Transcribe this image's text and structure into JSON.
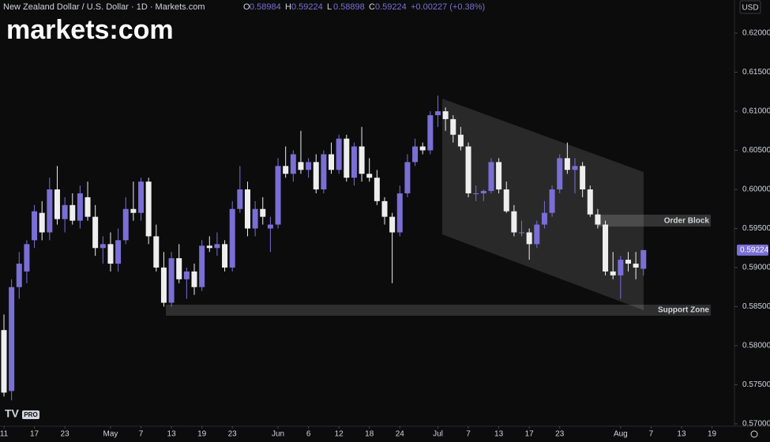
{
  "header": {
    "title": "New Zealand Dollar / U.S. Dollar · 1D · Markets.com",
    "change": "+0.00227 (+0.38%)",
    "currency": "USD",
    "logo": "markets:com",
    "badge": "PRO"
  },
  "chart_data": {
    "type": "candlestick",
    "open": [
      0.582,
      0.5742,
      0.5875,
      0.5895,
      0.5935,
      0.597,
      0.5945,
      0.6,
      0.5962,
      0.598,
      0.596,
      0.599,
      0.5965,
      0.5925,
      0.593,
      0.5905,
      0.5935,
      0.5975,
      0.597,
      0.601,
      0.594,
      0.59,
      0.5855,
      0.5912,
      0.5885,
      0.5895,
      0.5875,
      0.5928,
      0.5925,
      0.593,
      0.59,
      0.5975,
      0.6,
      0.595,
      0.5975,
      0.595,
      0.5955,
      0.603,
      0.602,
      0.6035,
      0.6025,
      0.6035,
      0.6,
      0.6045,
      0.6025,
      0.6065,
      0.6015,
      0.6055,
      0.602,
      0.6015,
      0.5985,
      0.5965,
      0.5945,
      0.5995,
      0.6035,
      0.6055,
      0.605,
      0.6095,
      0.61,
      0.609,
      0.607,
      0.6055,
      0.5995,
      0.5995,
      0.5998,
      0.6035,
      0.6,
      0.5972,
      0.5945,
      0.5945,
      0.593,
      0.5955,
      0.597,
      0.6,
      0.604,
      0.6025,
      0.603,
      0.6,
      0.5968,
      0.5955,
      0.5895,
      0.589,
      0.591,
      0.5905,
      0.58984
    ],
    "high": [
      0.584,
      0.5885,
      0.592,
      0.5935,
      0.598,
      0.5985,
      0.6015,
      0.603,
      0.599,
      0.5995,
      0.6005,
      0.601,
      0.598,
      0.594,
      0.5945,
      0.595,
      0.599,
      0.601,
      0.6015,
      0.6015,
      0.5955,
      0.592,
      0.592,
      0.593,
      0.59,
      0.5905,
      0.5935,
      0.594,
      0.5945,
      0.5935,
      0.5985,
      0.603,
      0.601,
      0.5985,
      0.599,
      0.5965,
      0.604,
      0.6055,
      0.605,
      0.6075,
      0.604,
      0.6045,
      0.605,
      0.606,
      0.607,
      0.607,
      0.606,
      0.608,
      0.604,
      0.6025,
      0.599,
      0.597,
      0.6005,
      0.6045,
      0.6065,
      0.606,
      0.61,
      0.612,
      0.6105,
      0.6095,
      0.608,
      0.606,
      0.6005,
      0.6,
      0.604,
      0.604,
      0.601,
      0.598,
      0.596,
      0.595,
      0.596,
      0.5985,
      0.6005,
      0.6045,
      0.606,
      0.604,
      0.6035,
      0.6005,
      0.5975,
      0.596,
      0.592,
      0.5915,
      0.592,
      0.592,
      0.59224
    ],
    "low": [
      0.5735,
      0.573,
      0.586,
      0.588,
      0.5925,
      0.5935,
      0.5935,
      0.5955,
      0.5945,
      0.5955,
      0.595,
      0.596,
      0.5915,
      0.5905,
      0.5895,
      0.5895,
      0.593,
      0.596,
      0.596,
      0.593,
      0.5895,
      0.585,
      0.585,
      0.588,
      0.586,
      0.5865,
      0.587,
      0.592,
      0.5915,
      0.5895,
      0.5895,
      0.597,
      0.594,
      0.594,
      0.5955,
      0.592,
      0.595,
      0.6015,
      0.601,
      0.602,
      0.6015,
      0.5995,
      0.5995,
      0.602,
      0.602,
      0.601,
      0.6005,
      0.601,
      0.601,
      0.598,
      0.5955,
      0.588,
      0.594,
      0.599,
      0.603,
      0.6045,
      0.6045,
      0.608,
      0.6075,
      0.606,
      0.605,
      0.599,
      0.5985,
      0.5985,
      0.5995,
      0.5995,
      0.597,
      0.594,
      0.594,
      0.591,
      0.5925,
      0.595,
      0.5965,
      0.5995,
      0.602,
      0.5995,
      0.599,
      0.5965,
      0.595,
      0.589,
      0.5885,
      0.586,
      0.5895,
      0.5885,
      0.58898
    ],
    "close": [
      0.574,
      0.5875,
      0.5905,
      0.593,
      0.5972,
      0.5945,
      0.6,
      0.5962,
      0.598,
      0.596,
      0.5995,
      0.5965,
      0.5925,
      0.593,
      0.5905,
      0.5935,
      0.5975,
      0.597,
      0.601,
      0.594,
      0.59,
      0.5855,
      0.5912,
      0.5885,
      0.5895,
      0.5875,
      0.5928,
      0.5925,
      0.593,
      0.59,
      0.5975,
      0.6,
      0.595,
      0.5975,
      0.5965,
      0.5955,
      0.603,
      0.602,
      0.6045,
      0.6025,
      0.6035,
      0.6,
      0.6045,
      0.6025,
      0.6065,
      0.6015,
      0.6055,
      0.602,
      0.6015,
      0.5985,
      0.5965,
      0.5945,
      0.5995,
      0.6035,
      0.6055,
      0.605,
      0.6095,
      0.61,
      0.609,
      0.607,
      0.6055,
      0.5995,
      0.5995,
      0.5998,
      0.6035,
      0.6,
      0.5972,
      0.5945,
      0.5945,
      0.593,
      0.5955,
      0.597,
      0.6,
      0.604,
      0.6025,
      0.603,
      0.6,
      0.5968,
      0.5955,
      0.5895,
      0.589,
      0.591,
      0.5905,
      0.59,
      0.59224
    ],
    "up_color": "#7a6fd4",
    "down_color": "#eeeeee",
    "ylim": [
      0.57,
      0.62
    ],
    "yticks": [
      {
        "value": 0.57,
        "label": "0.57000"
      },
      {
        "value": 0.575,
        "label": "0.57500"
      },
      {
        "value": 0.58,
        "label": "0.58000"
      },
      {
        "value": 0.585,
        "label": "0.58500"
      },
      {
        "value": 0.59,
        "label": "0.59000"
      },
      {
        "value": 0.595,
        "label": "0.59500"
      },
      {
        "value": 0.6,
        "label": "0.60000"
      },
      {
        "value": 0.605,
        "label": "0.60500"
      },
      {
        "value": 0.61,
        "label": "0.61000"
      },
      {
        "value": 0.615,
        "label": "0.61500"
      },
      {
        "value": 0.62,
        "label": "0.62000"
      }
    ],
    "xticks": [
      {
        "value": 0,
        "label": "11"
      },
      {
        "value": 4,
        "label": "17"
      },
      {
        "value": 8,
        "label": "23"
      },
      {
        "value": 14,
        "label": "May"
      },
      {
        "value": 18,
        "label": "7"
      },
      {
        "value": 22,
        "label": "13"
      },
      {
        "value": 26,
        "label": "19"
      },
      {
        "value": 30,
        "label": "23"
      },
      {
        "value": 36,
        "label": "Jun"
      },
      {
        "value": 40,
        "label": "6"
      },
      {
        "value": 44,
        "label": "12"
      },
      {
        "value": 48,
        "label": "18"
      },
      {
        "value": 52,
        "label": "24"
      },
      {
        "value": 57,
        "label": "Jul"
      },
      {
        "value": 61,
        "label": "7"
      },
      {
        "value": 65,
        "label": "13"
      },
      {
        "value": 69,
        "label": "17"
      },
      {
        "value": 73,
        "label": "23"
      },
      {
        "value": 81,
        "label": "Aug"
      },
      {
        "value": 85,
        "label": "7"
      },
      {
        "value": 89,
        "label": "13"
      },
      {
        "value": 93,
        "label": "19"
      }
    ],
    "annotations": [
      "Order Block",
      "Support Zone"
    ]
  }
}
